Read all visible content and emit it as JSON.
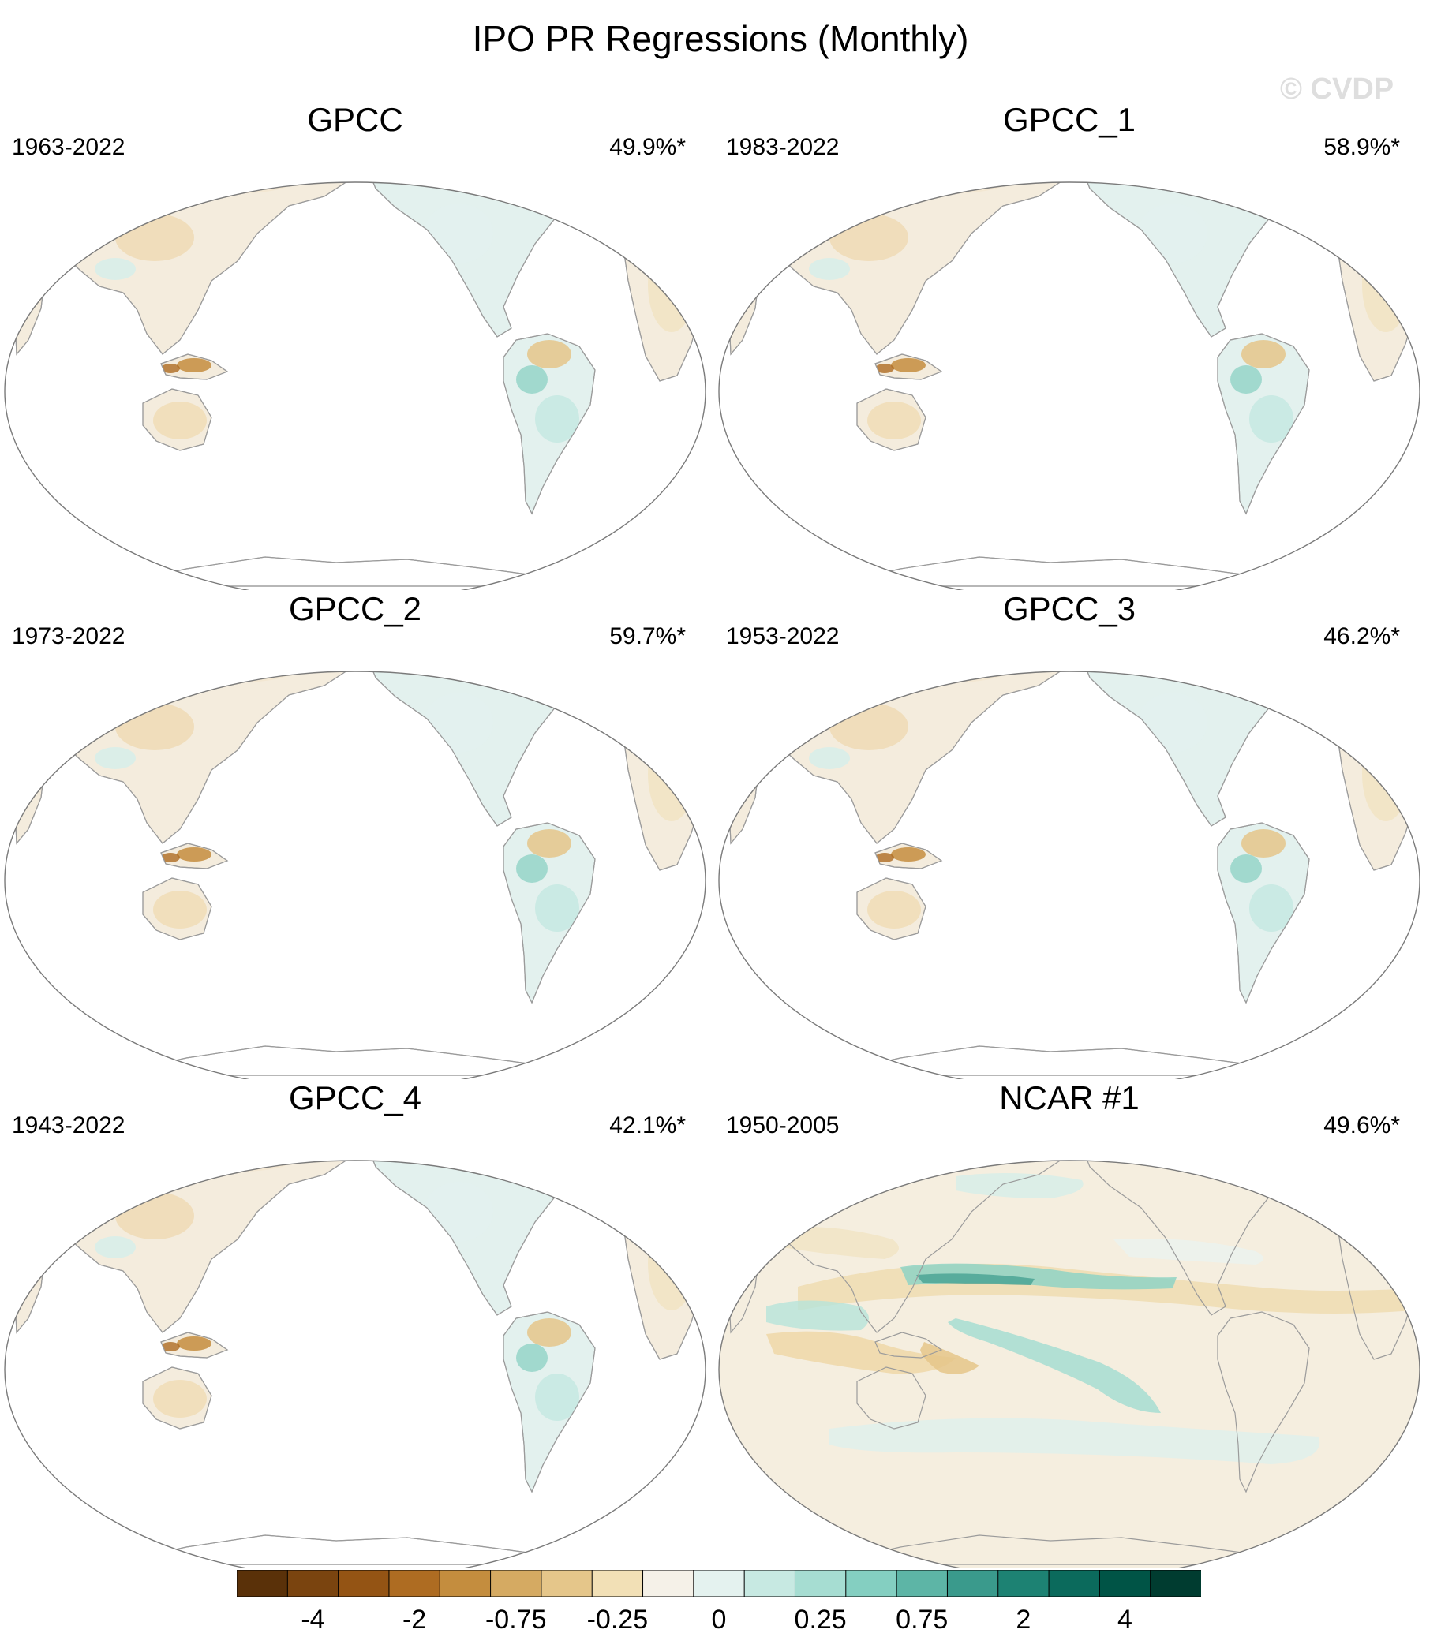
{
  "title": "IPO PR Regressions (Monthly)",
  "watermark": "© CVDP",
  "panels": [
    {
      "name": "GPCC",
      "years": "1963-2022",
      "variance": "49.9%*",
      "type": "land"
    },
    {
      "name": "GPCC_1",
      "years": "1983-2022",
      "variance": "58.9%*",
      "type": "land"
    },
    {
      "name": "GPCC_2",
      "years": "1973-2022",
      "variance": "59.7%*",
      "type": "land"
    },
    {
      "name": "GPCC_3",
      "years": "1953-2022",
      "variance": "46.2%*",
      "type": "land"
    },
    {
      "name": "GPCC_4",
      "years": "1943-2022",
      "variance": "42.1%*",
      "type": "land"
    },
    {
      "name": "NCAR #1",
      "years": "1950-2005",
      "variance": "49.6%*",
      "type": "global"
    }
  ],
  "colorbar": {
    "colors": [
      "#5a3109",
      "#7a440f",
      "#945414",
      "#ae6c22",
      "#c48d3e",
      "#d5aa62",
      "#e5c68a",
      "#f2e0b6",
      "#f5f1e8",
      "#e4f2ef",
      "#c7e9e2",
      "#a6ddd2",
      "#84cfc1",
      "#5db5a6",
      "#3a9a8c",
      "#1d8273",
      "#0b6a5c",
      "#005446",
      "#003c30"
    ],
    "labels": [
      {
        "text": "-4",
        "index": 2
      },
      {
        "text": "-2",
        "index": 4
      },
      {
        "text": "-0.75",
        "index": 6
      },
      {
        "text": "-0.25",
        "index": 8
      },
      {
        "text": "0",
        "index": 10
      },
      {
        "text": "0.25",
        "index": 12
      },
      {
        "text": "0.75",
        "index": 14
      },
      {
        "text": "2",
        "index": 16
      },
      {
        "text": "4",
        "index": 18
      }
    ]
  }
}
